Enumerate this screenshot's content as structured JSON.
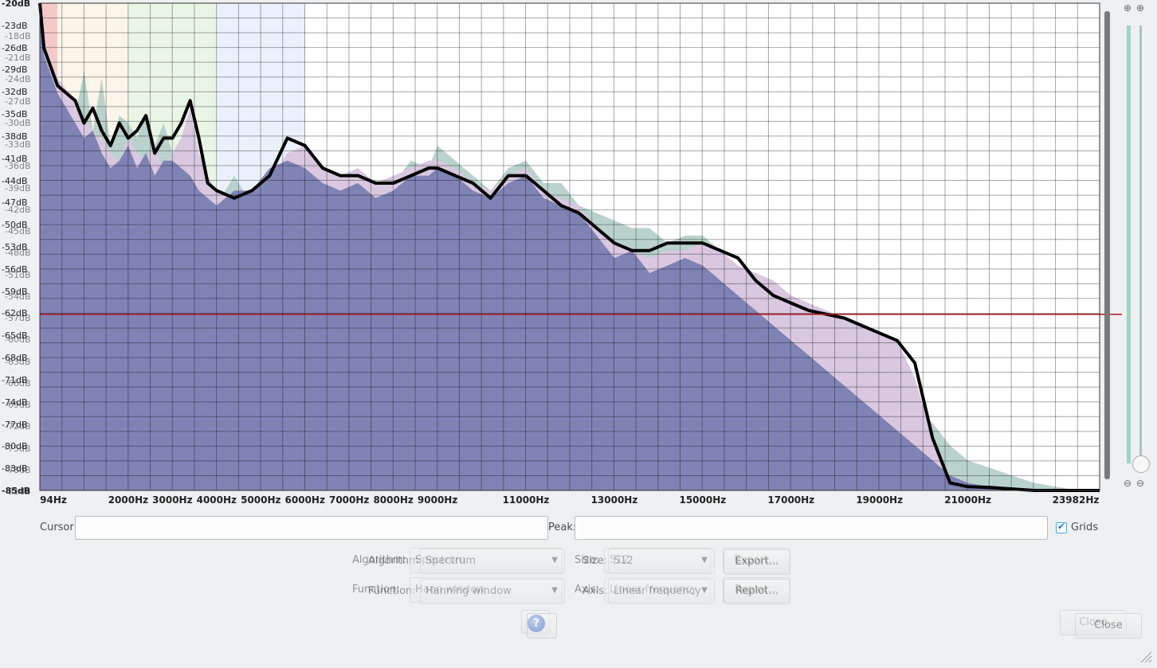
{
  "chart_data": {
    "type": "area",
    "title": "",
    "xlabel": "",
    "ylabel": "",
    "x_ticks": [
      "94Hz",
      "2000Hz",
      "3000Hz",
      "4000Hz",
      "5000Hz",
      "6000Hz",
      "7000Hz",
      "8000Hz",
      "9000Hz",
      "11000Hz",
      "13000Hz",
      "15000Hz",
      "17000Hz",
      "19000Hz",
      "21000Hz",
      "23982Hz"
    ],
    "x_tick_values": [
      94,
      2000,
      3000,
      4000,
      5000,
      6000,
      7000,
      8000,
      9000,
      11000,
      13000,
      15000,
      17000,
      19000,
      21000,
      23982
    ],
    "xlim": [
      0,
      23982
    ],
    "ylim": [
      -85,
      -20
    ],
    "y_ticks": [
      "-20dB",
      "-23dB",
      "-26dB",
      "-29dB",
      "-32dB",
      "-35dB",
      "-38dB",
      "-41dB",
      "-44dB",
      "-47dB",
      "-50dB",
      "-53dB",
      "-56dB",
      "-59dB",
      "-62dB",
      "-65dB",
      "-68dB",
      "-71dB",
      "-74dB",
      "-77dB",
      "-80dB",
      "-83dB",
      "-85dB"
    ],
    "y_ticks_ghost": [
      "-18dB",
      "-21dB",
      "-24dB",
      "-27dB",
      "-30dB",
      "-33dB",
      "-36dB",
      "-39dB",
      "-42dB",
      "-45dB",
      "-48dB",
      "-51dB",
      "-54dB",
      "-57dB",
      "-60dB",
      "-63dB",
      "-66dB",
      "-69dB",
      "-72dB",
      "-75dB",
      "-78dB",
      "-81dB"
    ],
    "grid": true,
    "threshold_db": -61.5,
    "band_highlights": [
      {
        "from": 0,
        "to": 400,
        "color": "#f4c0c0"
      },
      {
        "from": 400,
        "to": 2000,
        "color": "#fbf3e6"
      },
      {
        "from": 2000,
        "to": 4000,
        "color": "#e6f4e0"
      },
      {
        "from": 4000,
        "to": 6000,
        "color": "#e8eefb"
      }
    ],
    "series": [
      {
        "color": "#b9d3cc",
        "x": [
          0,
          94,
          400,
          800,
          1000,
          1200,
          1400,
          1600,
          1800,
          2000,
          2200,
          2400,
          2600,
          2800,
          3000,
          3200,
          3400,
          3600,
          3800,
          4000,
          4400,
          4800,
          5200,
          5600,
          6000,
          6400,
          6800,
          7200,
          7600,
          8000,
          8400,
          8800,
          9000,
          9400,
          9800,
          10200,
          10600,
          11000,
          11400,
          11800,
          12200,
          12600,
          13000,
          13400,
          13800,
          14200,
          14600,
          15000,
          15400,
          15800,
          16200,
          16600,
          17000,
          17400,
          17800,
          18200,
          18600,
          19000,
          19400,
          19800,
          20200,
          20600,
          21000,
          21500,
          22000,
          22500,
          23000,
          23500,
          23982
        ],
        "values": [
          -21,
          -26,
          -31,
          -35,
          -29,
          -37,
          -30,
          -39,
          -35,
          -36,
          -38,
          -35,
          -39,
          -36,
          -40,
          -38,
          -37,
          -41,
          -44,
          -47,
          -43,
          -47,
          -44,
          -41,
          -41,
          -43,
          -45,
          -43,
          -46,
          -44,
          -41,
          -42,
          -39,
          -41,
          -43,
          -45,
          -42,
          -41,
          -44,
          -44,
          -47,
          -48,
          -49,
          -50,
          -50,
          -52,
          -51,
          -51,
          -53,
          -55,
          -57,
          -59,
          -61,
          -62,
          -64,
          -66,
          -68,
          -70,
          -72,
          -74,
          -76,
          -79,
          -81,
          -82,
          -83,
          -84,
          -84.5,
          -85,
          -85
        ]
      },
      {
        "color": "#d9c8e0",
        "x": [
          0,
          94,
          400,
          800,
          1000,
          1200,
          1400,
          1600,
          1800,
          2000,
          2200,
          2400,
          2600,
          2800,
          3000,
          3200,
          3400,
          3600,
          3800,
          4000,
          4400,
          4800,
          5200,
          5600,
          6000,
          6400,
          6800,
          7200,
          7600,
          8000,
          8400,
          8800,
          9000,
          9400,
          9800,
          10200,
          10600,
          11000,
          11400,
          11800,
          12200,
          12600,
          13000,
          13400,
          13800,
          14200,
          14600,
          15000,
          15400,
          15800,
          16200,
          16600,
          17000,
          17400,
          17800,
          18200,
          18600,
          19000,
          19400,
          19800,
          20200,
          20600,
          21000,
          21500,
          22000,
          22500,
          23000,
          23500,
          23982
        ],
        "values": [
          -20,
          -25,
          -30,
          -33,
          -35,
          -37,
          -38,
          -40,
          -41,
          -38,
          -40,
          -41,
          -39,
          -42,
          -40,
          -38,
          -34,
          -40,
          -43,
          -45,
          -46,
          -46,
          -44,
          -40,
          -39,
          -42,
          -43,
          -42,
          -44,
          -43,
          -42,
          -41,
          -41,
          -42,
          -44,
          -45,
          -43,
          -42,
          -45,
          -46,
          -47,
          -50,
          -52,
          -53,
          -54,
          -53,
          -53,
          -52,
          -53,
          -55,
          -56,
          -57,
          -59,
          -60,
          -61,
          -62,
          -63,
          -64,
          -65,
          -70,
          -78,
          -83,
          -84,
          -84.5,
          -84.8,
          -85,
          -85,
          -85,
          -85
        ]
      },
      {
        "color": "#7a7fb1",
        "x": [
          0,
          94,
          400,
          800,
          1000,
          1200,
          1400,
          1600,
          1800,
          2000,
          2200,
          2400,
          2600,
          2800,
          3000,
          3200,
          3400,
          3600,
          3800,
          4000,
          4400,
          4800,
          5200,
          5600,
          6000,
          6400,
          6800,
          7200,
          7600,
          8000,
          8400,
          8800,
          9000,
          9400,
          9800,
          10200,
          10600,
          11000,
          11400,
          11800,
          12200,
          12600,
          13000,
          13400,
          13800,
          14200,
          14600,
          15000,
          15400,
          15800,
          16200,
          16600,
          17000,
          17400,
          17800,
          18200,
          18600,
          19000,
          19400,
          19800,
          20200,
          20600,
          21000,
          21500,
          22000,
          22500,
          23000,
          23500,
          23982
        ],
        "values": [
          -22,
          -27,
          -32,
          -36,
          -38,
          -37,
          -40,
          -42,
          -41,
          -39,
          -42,
          -40,
          -43,
          -41,
          -41,
          -42,
          -43,
          -45,
          -46,
          -47,
          -45,
          -45,
          -42,
          -41,
          -42,
          -44,
          -45,
          -44,
          -46,
          -45,
          -43,
          -43,
          -42,
          -43,
          -45,
          -46,
          -44,
          -43,
          -46,
          -47,
          -48,
          -51,
          -54,
          -53,
          -56,
          -55,
          -54,
          -55,
          -57,
          -59,
          -61,
          -63,
          -65,
          -67,
          -69,
          -71,
          -73,
          -75,
          -77,
          -79,
          -81,
          -83,
          -84,
          -84.5,
          -85,
          -85,
          -85,
          -85,
          -85
        ]
      },
      {
        "color": "#000000",
        "x": [
          0,
          94,
          400,
          800,
          1000,
          1200,
          1400,
          1600,
          1800,
          2000,
          2200,
          2400,
          2600,
          2800,
          3000,
          3200,
          3400,
          3600,
          3800,
          4000,
          4400,
          4800,
          5200,
          5600,
          6000,
          6400,
          6800,
          7200,
          7600,
          8000,
          8400,
          8800,
          9000,
          9400,
          9800,
          10200,
          10600,
          11000,
          11400,
          11800,
          12200,
          12600,
          13000,
          13400,
          13800,
          14200,
          14600,
          15000,
          15400,
          15800,
          16200,
          16600,
          17000,
          17400,
          17800,
          18200,
          18600,
          19000,
          19400,
          19800,
          20200,
          20600,
          21000,
          21500,
          22000,
          22500,
          23000,
          23500,
          23982
        ],
        "values": [
          -20,
          -26,
          -31,
          -33,
          -36,
          -34,
          -37,
          -39,
          -36,
          -38,
          -37,
          -35,
          -40,
          -38,
          -38,
          -36,
          -33,
          -38,
          -44,
          -45,
          -46,
          -45,
          -43,
          -38,
          -39,
          -42,
          -43,
          -43,
          -44,
          -44,
          -43,
          -42,
          -42,
          -43,
          -44,
          -46,
          -43,
          -43,
          -45,
          -47,
          -48,
          -50,
          -52,
          -53,
          -53,
          -52,
          -52,
          -52,
          -53,
          -54,
          -57,
          -59,
          -60,
          -61,
          -61.5,
          -62,
          -63,
          -64,
          -65,
          -68,
          -78,
          -84,
          -84.5,
          -84.6,
          -84.8,
          -85,
          -85,
          -85,
          -85
        ]
      }
    ]
  },
  "controls": {
    "cursor_label": "Cursor:",
    "cursor_value": "",
    "peak_label": "Peak:",
    "peak_value": "",
    "grids_label": "Grids",
    "grids_checked": true,
    "algorithm_label": "Algorithm:",
    "algorithm_label_ghost": "Algorithm:",
    "algorithm_value": "Spectrum",
    "algorithm_value_ghost": "Spectrum",
    "size_label": "Size:",
    "size_label_ghost": "Size:",
    "size_value": "512",
    "size_value_ghost": "512",
    "export_label": "Export...",
    "export_label_ghost": "Export...",
    "function_label": "Function:",
    "function_label_ghost": "Function:",
    "function_value": "Hann window",
    "function_value_ghost": "Hanning window",
    "axis_label": "Axis:",
    "axis_label_ghost": "Axis:",
    "axis_value": "Linear frequency",
    "axis_value_ghost": "Linear frequency",
    "replot_label": "Replot...",
    "replot_label_ghost": "Replot...",
    "help_icon": "?",
    "close_label": "Close",
    "close_label_ghost": "Close"
  },
  "icons": {
    "zoom_in": "zoom-in-icon",
    "zoom_out": "zoom-out-icon",
    "help": "help-icon",
    "resize_grip": "resize-grip-icon"
  },
  "colors": {
    "accent": "#3daee9",
    "threshold": "#b0121b",
    "grid": "#000000"
  }
}
